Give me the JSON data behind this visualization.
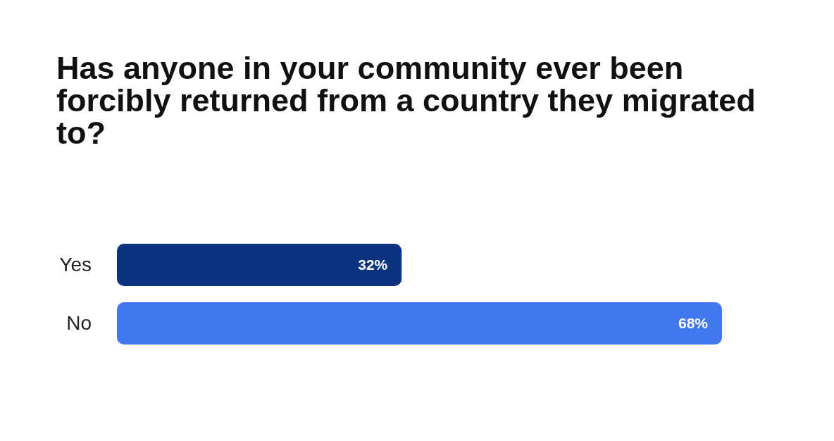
{
  "chart_data": {
    "type": "bar",
    "orientation": "horizontal",
    "title": "Has anyone in your community ever been forcibly returned from a country they migrated to?",
    "categories": [
      "Yes",
      "No"
    ],
    "values": [
      32,
      68
    ],
    "colors": [
      "#0b3380",
      "#4178ef"
    ],
    "value_labels": [
      "32%",
      "68%"
    ]
  }
}
